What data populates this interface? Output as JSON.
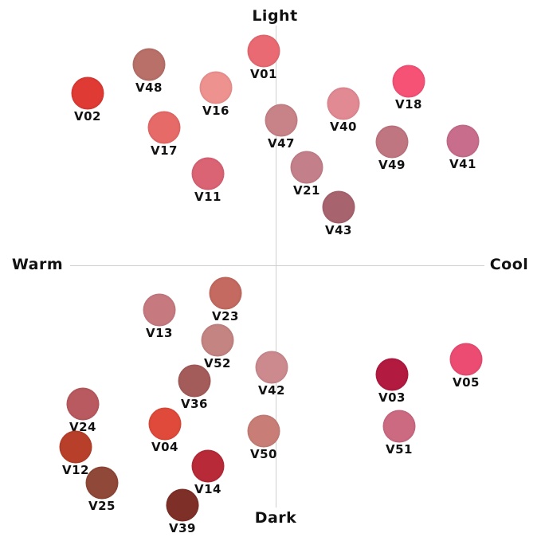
{
  "axes": {
    "top": "Light",
    "bottom": "Dark",
    "left": "Warm",
    "right": "Cool"
  },
  "swatches": [
    {
      "name": "V01",
      "color": "#e96a72"
    },
    {
      "name": "V48",
      "color": "#b87068"
    },
    {
      "name": "V02",
      "color": "#df3a34"
    },
    {
      "name": "V16",
      "color": "#ee9290"
    },
    {
      "name": "V18",
      "color": "#f55276"
    },
    {
      "name": "V40",
      "color": "#e28a94"
    },
    {
      "name": "V47",
      "color": "#c88388"
    },
    {
      "name": "V17",
      "color": "#e66a68"
    },
    {
      "name": "V49",
      "color": "#c07680"
    },
    {
      "name": "V41",
      "color": "#c86e8c"
    },
    {
      "name": "V21",
      "color": "#c4808a"
    },
    {
      "name": "V11",
      "color": "#da6374"
    },
    {
      "name": "V43",
      "color": "#a8646e"
    },
    {
      "name": "V23",
      "color": "#c46a60"
    },
    {
      "name": "V13",
      "color": "#c67a80"
    },
    {
      "name": "V52",
      "color": "#c48482"
    },
    {
      "name": "V42",
      "color": "#cc8a8e"
    },
    {
      "name": "V03",
      "color": "#b21a40"
    },
    {
      "name": "V05",
      "color": "#ec4c72"
    },
    {
      "name": "V36",
      "color": "#a45c5a"
    },
    {
      "name": "V24",
      "color": "#b85a60"
    },
    {
      "name": "V04",
      "color": "#e04a3a"
    },
    {
      "name": "V51",
      "color": "#cc6a82"
    },
    {
      "name": "V50",
      "color": "#c87e76"
    },
    {
      "name": "V12",
      "color": "#b8402a"
    },
    {
      "name": "V14",
      "color": "#b82a38"
    },
    {
      "name": "V25",
      "color": "#904838"
    },
    {
      "name": "V39",
      "color": "#7e3028"
    }
  ]
}
